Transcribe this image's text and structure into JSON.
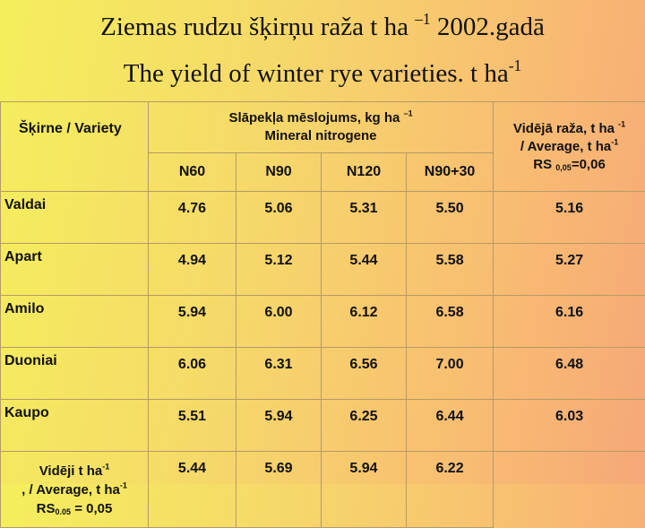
{
  "header": {
    "title": [
      "Ziemas rudzu šķirņu raža t ha ",
      "–1",
      " 2002.gadā"
    ],
    "subtitle": [
      "The yield of winter rye varieties. t ha",
      "-1"
    ]
  },
  "table": {
    "variety_header": "Šķirne / Variety",
    "group_header": [
      "Slāpekļa mēslojums, kg ha ",
      "–1",
      "Mineral nitrogene"
    ],
    "columns": [
      "N60",
      "N90",
      "N120",
      "N90+30"
    ],
    "average_header": [
      "Vidējā raža, t ha ",
      "-1",
      " / Average, t ha",
      "-1",
      "RS ",
      "0,05",
      "=0,06"
    ],
    "rows": [
      [
        "Valdai",
        "4.76",
        "5.06",
        "5.31",
        "5.50",
        "5.16"
      ],
      [
        "Apart",
        "4.94",
        "5.12",
        "5.44",
        "5.58",
        "5.27"
      ],
      [
        "Amilo",
        "5.94",
        "6.00",
        "6.12",
        "6.58",
        "6.16"
      ],
      [
        "Duoniai",
        "6.06",
        "6.31",
        "6.56",
        "7.00",
        "6.48"
      ],
      [
        "Kaupo",
        "5.51",
        "5.94",
        "6.25",
        "6.44",
        "6.03"
      ]
    ],
    "footer_label": [
      "Vidēji t ha",
      "-1",
      ", / Average, t ha",
      "-1",
      "RS",
      "0.05",
      " = 0,05"
    ],
    "footer_values": [
      "5.44",
      "5.69",
      "5.94",
      "6.22"
    ]
  }
}
